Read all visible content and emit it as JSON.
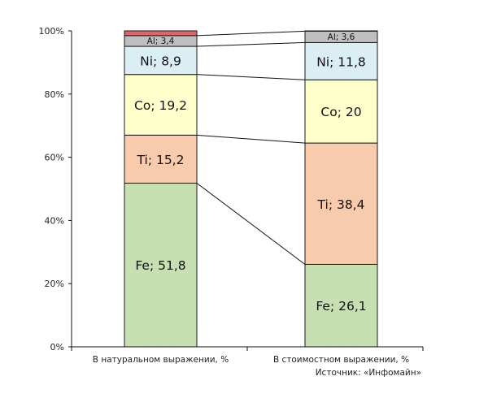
{
  "chart_data": {
    "type": "bar",
    "stacked": true,
    "categories": [
      "В натуральном выражении, %",
      "В стоимостном выражении, %"
    ],
    "y_ticks": [
      "0%",
      "20%",
      "40%",
      "60%",
      "80%",
      "100%"
    ],
    "ylim": [
      0,
      100
    ],
    "grid": false,
    "legend": "none",
    "series": [
      {
        "name": "Fe",
        "values": [
          51.8,
          26.1
        ],
        "labels": [
          "Fe; 51,8",
          "Fe; 26,1"
        ],
        "color": "#c6e0b4"
      },
      {
        "name": "Ti",
        "values": [
          15.2,
          38.4
        ],
        "labels": [
          "Ti; 15,2",
          "Ti; 38,4"
        ],
        "color": "#f8cbad"
      },
      {
        "name": "Co",
        "values": [
          19.2,
          20.0
        ],
        "labels": [
          "Co; 19,2",
          "Co; 20"
        ],
        "color": "#ffffcc"
      },
      {
        "name": "Ni",
        "values": [
          8.9,
          11.8
        ],
        "labels": [
          "Ni; 8,9",
          "Ni; 11,8"
        ],
        "color": "#dbeef4"
      },
      {
        "name": "Al",
        "values": [
          3.4,
          3.6
        ],
        "labels": [
          "Al; 3,4",
          "Al; 3,6"
        ],
        "color": "#bfbfbf"
      },
      {
        "name": "",
        "values": [
          1.5,
          0.1
        ],
        "labels": [
          "",
          ""
        ],
        "color": "#e06666"
      }
    ],
    "source_note": "Источник: «Инфомайн»"
  }
}
